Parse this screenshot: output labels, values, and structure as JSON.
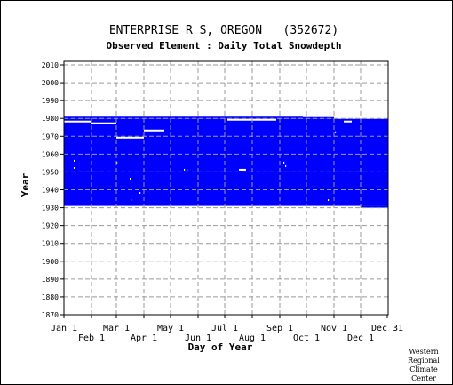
{
  "chart_data": {
    "type": "area",
    "title": "ENTERPRISE R S, OREGON   (352672)",
    "subtitle": "Observed Element : Daily Total Snowdepth",
    "xlabel": "Day of Year",
    "ylabel": "Year",
    "ylim": [
      1870,
      2012
    ],
    "yticks": [
      2010,
      2000,
      1990,
      1980,
      1970,
      1960,
      1950,
      1940,
      1930,
      1920,
      1910,
      1900,
      1890,
      1880,
      1870
    ],
    "xlim": [
      1,
      366
    ],
    "xticks_top_row": [
      {
        "label": "Jan 1",
        "day": 1
      },
      {
        "label": "Mar 1",
        "day": 60
      },
      {
        "label": "May 1",
        "day": 121
      },
      {
        "label": "Jul 1",
        "day": 182
      },
      {
        "label": "Sep 1",
        "day": 244
      },
      {
        "label": "Nov 1",
        "day": 305
      },
      {
        "label": "Dec 31",
        "day": 365
      }
    ],
    "xticks_bottom_row": [
      {
        "label": "Feb 1",
        "day": 32
      },
      {
        "label": "Apr 1",
        "day": 91
      },
      {
        "label": "Jun 1",
        "day": 152
      },
      {
        "label": "Aug 1",
        "day": 213
      },
      {
        "label": "Oct 1",
        "day": 274
      },
      {
        "label": "Dec 1",
        "day": 335
      }
    ],
    "grid": true,
    "series": [
      {
        "color": "#0000ff",
        "coverage": [
          {
            "start_day": 1,
            "end_day": 366,
            "start_year": 1931,
            "end_year": 1980
          },
          {
            "start_day": 1,
            "end_day": 305,
            "start_year": 1980,
            "end_year": 1981
          },
          {
            "start_day": 335,
            "end_day": 366,
            "start_year": 1930,
            "end_year": 1931
          }
        ],
        "missing": [
          {
            "start_day": 1,
            "end_day": 32,
            "year": 1978
          },
          {
            "start_day": 32,
            "end_day": 60,
            "year": 1977
          },
          {
            "start_day": 60,
            "end_day": 91,
            "year": 1969
          },
          {
            "start_day": 91,
            "end_day": 114,
            "year": 1973
          },
          {
            "start_day": 185,
            "end_day": 213,
            "year": 1979
          },
          {
            "start_day": 213,
            "end_day": 240,
            "year": 1979
          },
          {
            "start_day": 270,
            "end_day": 366,
            "year": 1981
          },
          {
            "start_day": 305,
            "end_day": 366,
            "year": 1980
          },
          {
            "start_day": 316,
            "end_day": 325,
            "year": 1978
          },
          {
            "start_day": 198,
            "end_day": 206,
            "year": 1951
          },
          {
            "start_day": 248,
            "end_day": 249,
            "year": 1955
          },
          {
            "start_day": 250,
            "end_day": 251,
            "year": 1953
          },
          {
            "start_day": 12,
            "end_day": 13,
            "year": 1956
          },
          {
            "start_day": 12,
            "end_day": 13,
            "year": 1952
          },
          {
            "start_day": 75,
            "end_day": 76,
            "year": 1946
          },
          {
            "start_day": 76,
            "end_day": 77,
            "year": 1934
          },
          {
            "start_day": 86,
            "end_day": 87,
            "year": 1938
          },
          {
            "start_day": 136,
            "end_day": 137,
            "year": 1951
          },
          {
            "start_day": 139,
            "end_day": 140,
            "year": 1951
          },
          {
            "start_day": 298,
            "end_day": 299,
            "year": 1934
          },
          {
            "start_day": 306,
            "end_day": 307,
            "year": 1972
          },
          {
            "start_day": 60,
            "end_day": 61,
            "year": 1955
          }
        ]
      }
    ]
  },
  "credit": [
    "Western",
    "Regional",
    "Climate",
    "Center"
  ]
}
